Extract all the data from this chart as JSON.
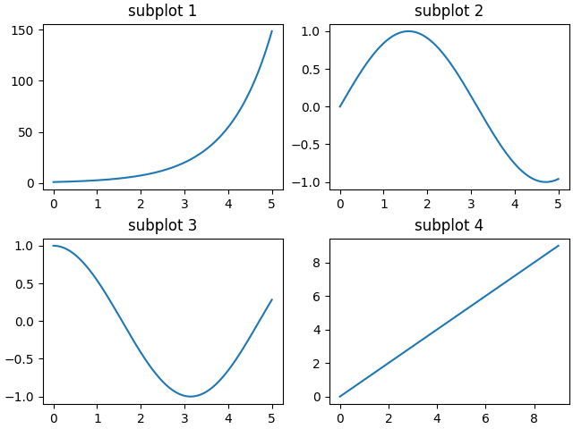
{
  "title1": "subplot 1",
  "title2": "subplot 2",
  "title3": "subplot 3",
  "title4": "subplot 4",
  "line_color": "#1f77b4",
  "figsize": [
    6.4,
    4.8
  ],
  "dpi": 100
}
